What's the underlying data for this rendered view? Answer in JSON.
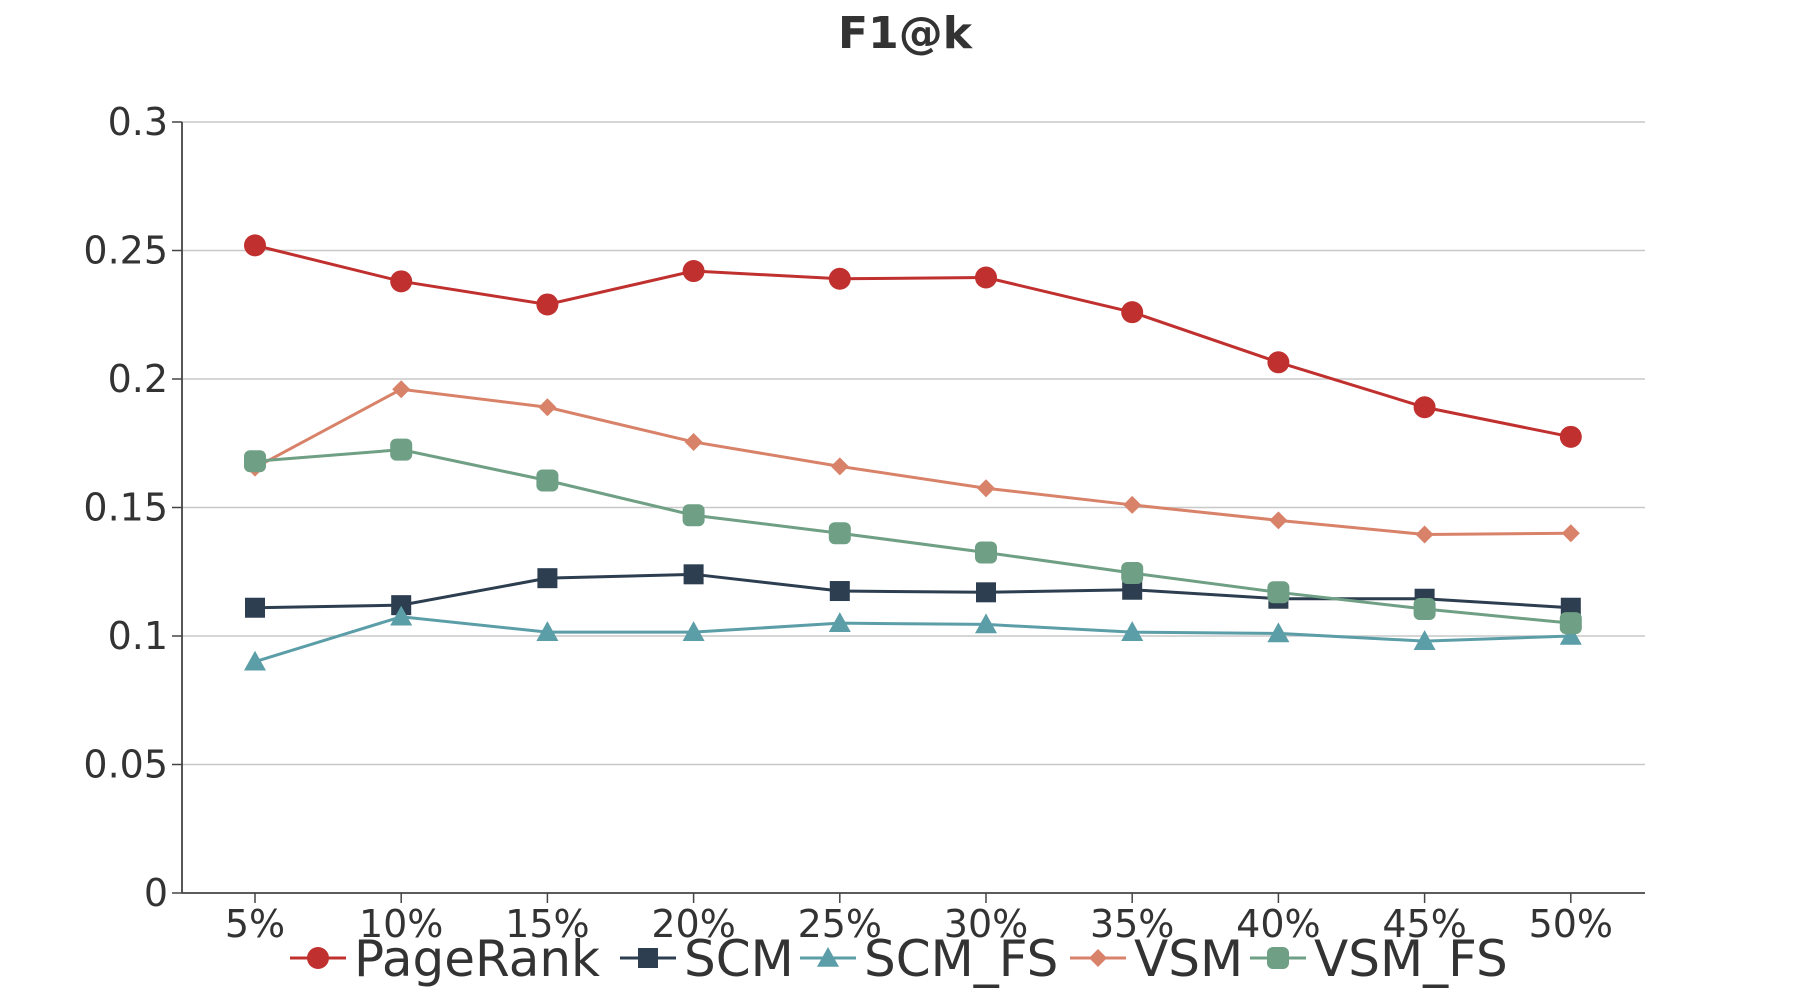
{
  "chart_data": {
    "type": "line",
    "title": "F1@k",
    "xlabel": "",
    "ylabel": "",
    "categories": [
      "5%",
      "10%",
      "15%",
      "20%",
      "25%",
      "30%",
      "35%",
      "40%",
      "45%",
      "50%"
    ],
    "ylim": [
      0,
      0.3
    ],
    "yticks": [
      0,
      0.05,
      0.1,
      0.15,
      0.2,
      0.25,
      0.3
    ],
    "ytick_labels": [
      "0",
      "0.05",
      "0.1",
      "0.15",
      "0.2",
      "0.25",
      "0.3"
    ],
    "grid": true,
    "legend_position": "bottom",
    "series": [
      {
        "name": "PageRank",
        "marker": "circle",
        "color": "#c0302f",
        "values": [
          0.252,
          0.238,
          0.229,
          0.242,
          0.239,
          0.2395,
          0.226,
          0.2065,
          0.189,
          0.1775
        ]
      },
      {
        "name": "SCM",
        "marker": "square",
        "color": "#2c3e50",
        "values": [
          0.111,
          0.112,
          0.1225,
          0.124,
          0.1175,
          0.117,
          0.118,
          0.1145,
          0.1145,
          0.111
        ]
      },
      {
        "name": "SCM_FS",
        "marker": "triangle",
        "color": "#5c9ea8",
        "values": [
          0.09,
          0.1075,
          0.1015,
          0.1015,
          0.105,
          0.1045,
          0.1015,
          0.101,
          0.098,
          0.1
        ]
      },
      {
        "name": "VSM",
        "marker": "diamond",
        "color": "#d9826a",
        "values": [
          0.1655,
          0.196,
          0.189,
          0.1755,
          0.166,
          0.1575,
          0.151,
          0.145,
          0.1395,
          0.14
        ]
      },
      {
        "name": "VSM_FS",
        "marker": "rounded-square",
        "color": "#6f9f84",
        "values": [
          0.168,
          0.1725,
          0.1605,
          0.147,
          0.14,
          0.1325,
          0.1245,
          0.117,
          0.1105,
          0.105
        ]
      }
    ]
  }
}
